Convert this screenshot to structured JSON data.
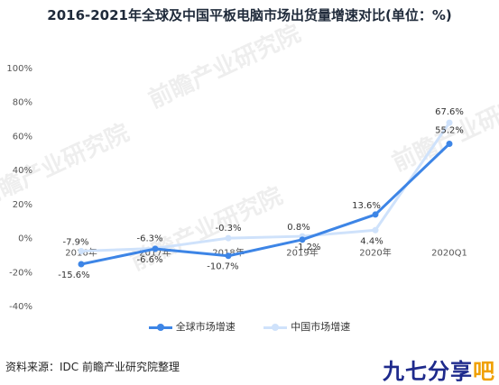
{
  "chart_data": {
    "type": "line",
    "title": "2016-2021年全球及中国平板电脑市场出货量增速对比(单位：%)",
    "categories": [
      "2016年",
      "2017年",
      "2018年",
      "2019年",
      "2020年",
      "2020Q1"
    ],
    "series": [
      {
        "name": "全球市场增速",
        "values": [
          -15.6,
          -6.6,
          -10.7,
          -1.2,
          13.6,
          55.2
        ],
        "labels": [
          "-15.6%",
          "-6.6%",
          "-10.7%",
          "-1.2%",
          "13.6%",
          "55.2%"
        ],
        "color": "#3d85e6"
      },
      {
        "name": "中国市场增速",
        "values": [
          -7.9,
          -6.3,
          -0.3,
          0.8,
          4.4,
          67.6
        ],
        "labels": [
          "-7.9%",
          "-6.3%",
          "-0.3%",
          "0.8%",
          "4.4%",
          "67.6%"
        ],
        "color": "#cfe2fb"
      }
    ],
    "ylim": [
      -40,
      100
    ],
    "yticks": [
      "100%",
      "80%",
      "60%",
      "40%",
      "20%",
      "0%",
      "-20%",
      "-40%"
    ],
    "grid": false,
    "legend": "bottom"
  },
  "source": "资料来源：IDC 前瞻产业研究院整理",
  "brand": {
    "main": "九七分享",
    "accent": "吧"
  },
  "watermark": "前瞻产业研究院"
}
